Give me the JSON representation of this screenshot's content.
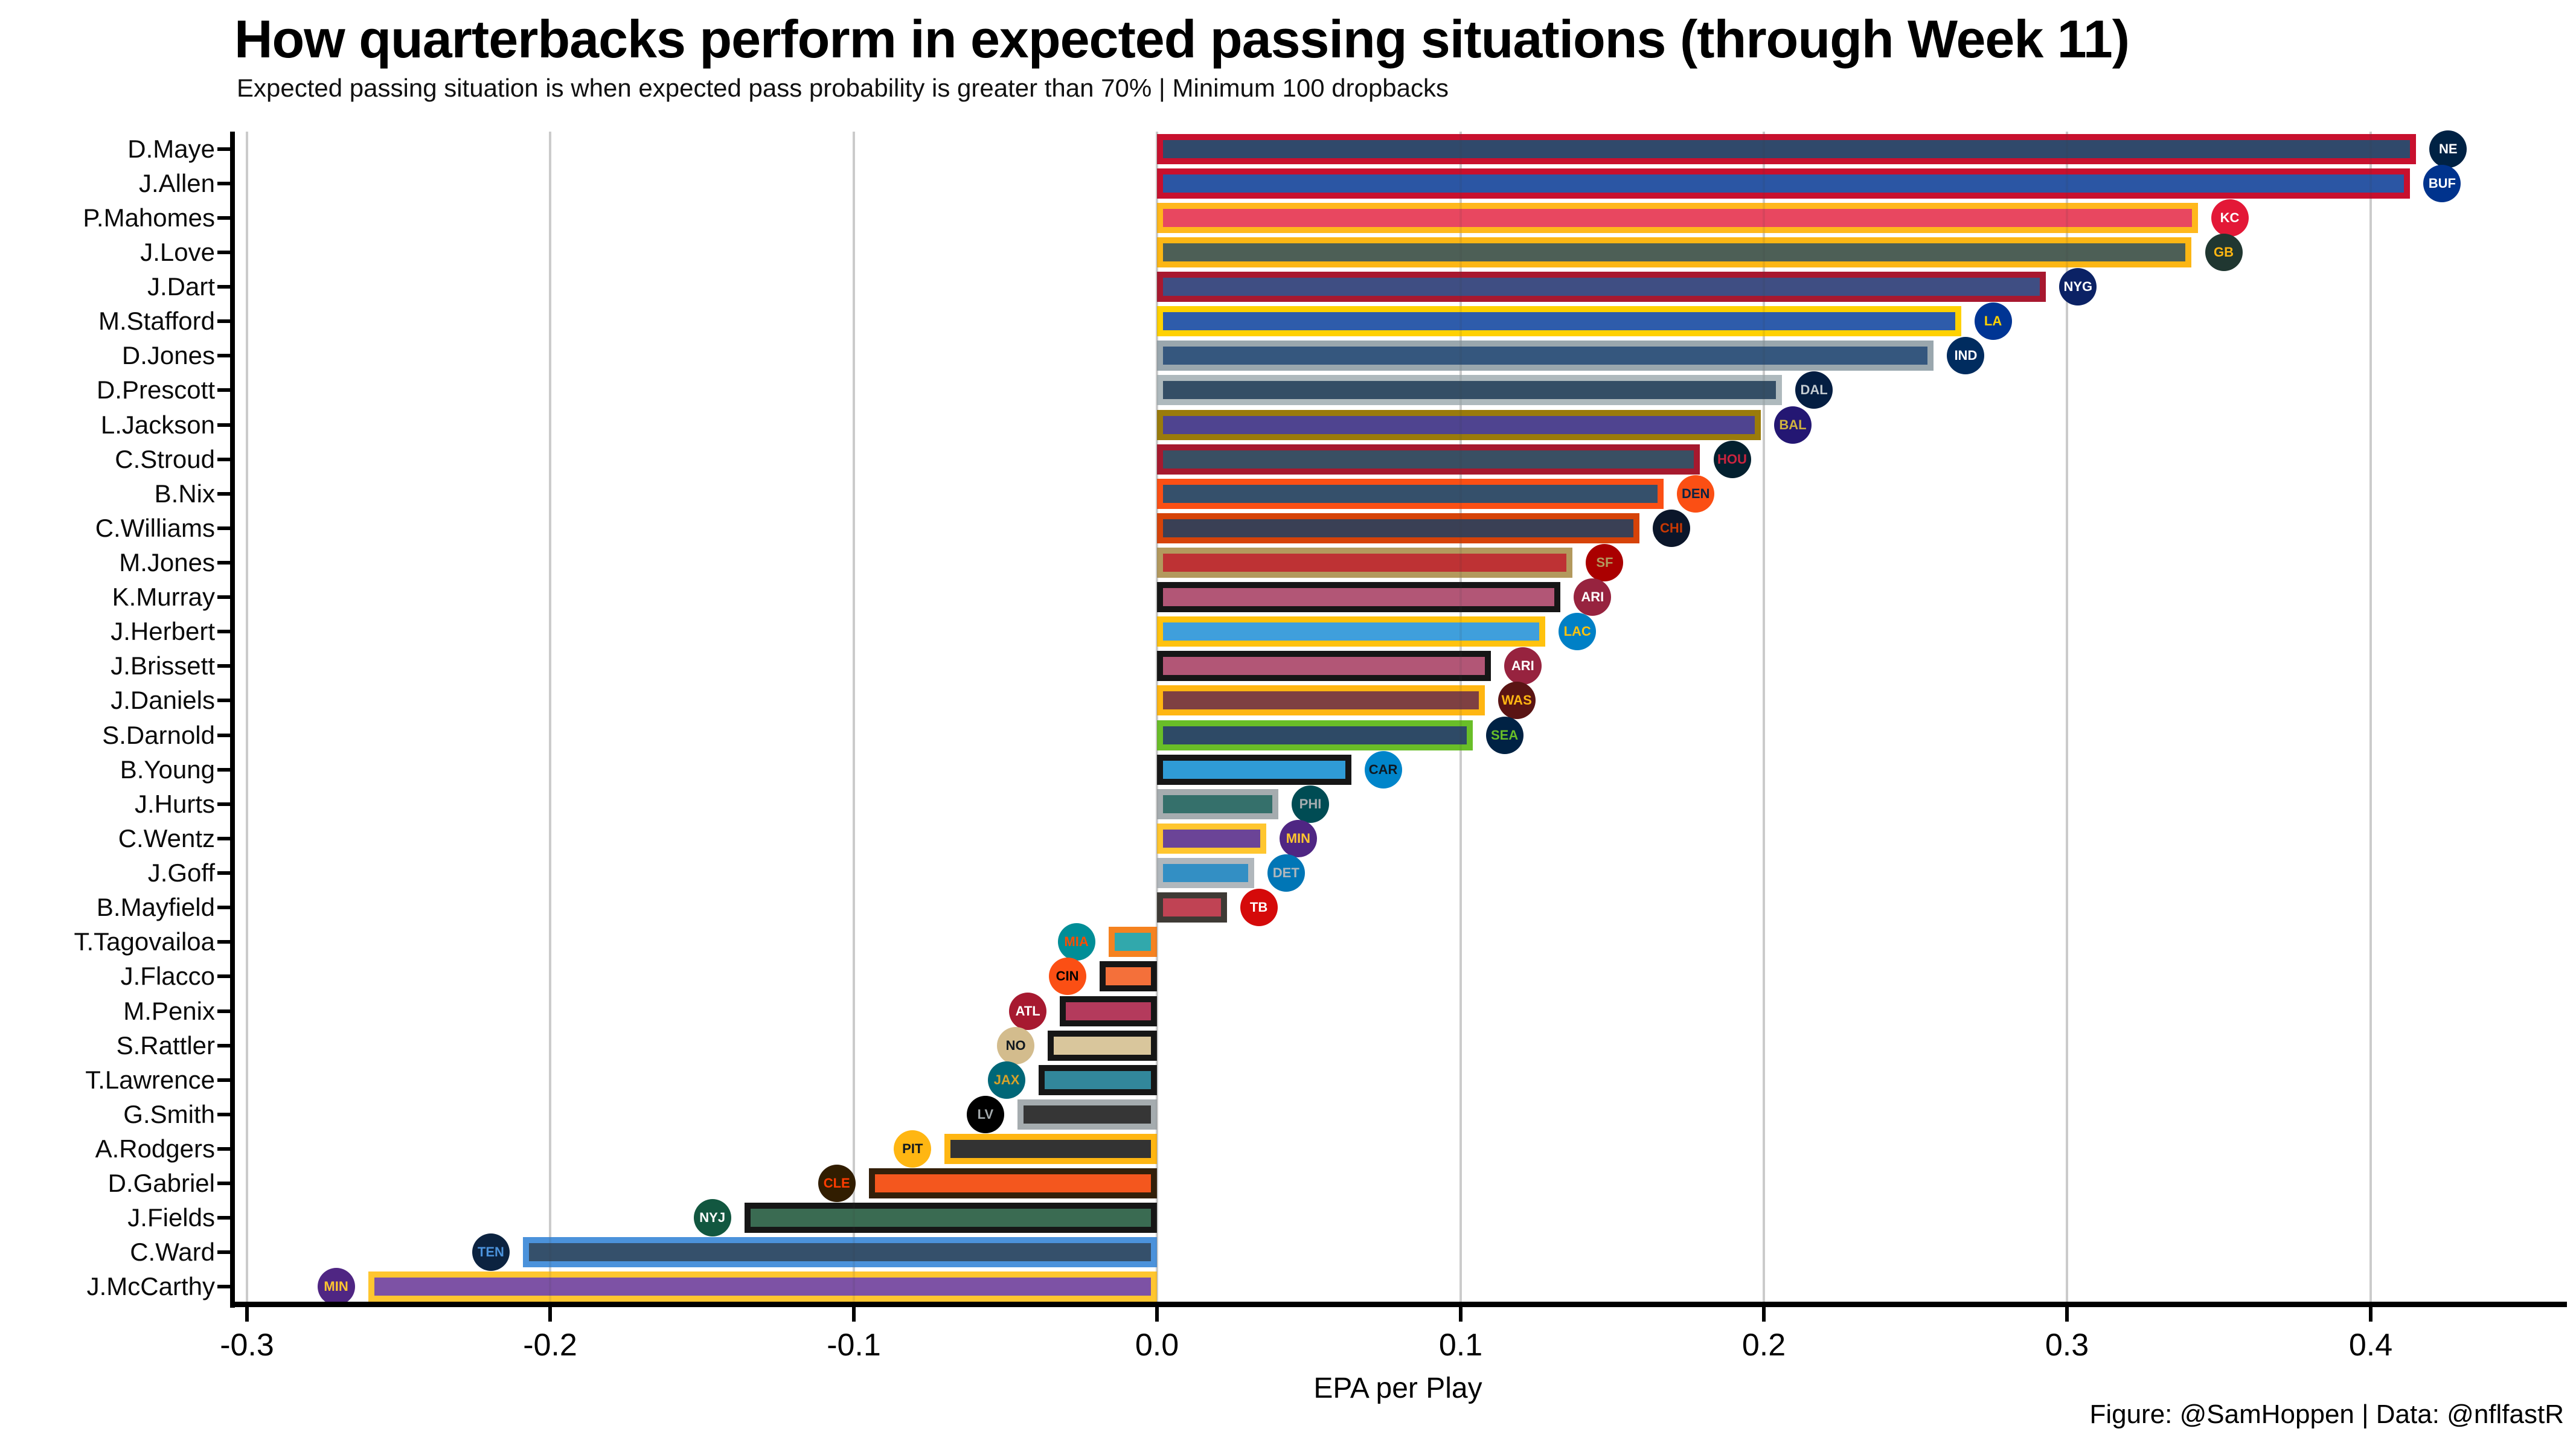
{
  "footer": "Figure: @SamHoppen | Data: @nflfastR",
  "chart_data": {
    "type": "bar",
    "orientation": "horizontal",
    "title": "How quarterbacks perform in expected passing situations (through Week 11)",
    "subtitle": "Expected passing situation is when expected pass probability is greater than 70% | Minimum 100 dropbacks",
    "xlabel": "EPA per Play",
    "xlim": [
      -0.3045,
      0.4631
    ],
    "xticks": [
      -0.3,
      -0.2,
      -0.1,
      0.0,
      0.1,
      0.2,
      0.3,
      0.4
    ],
    "grid": "vertical-gridlines",
    "legend": "none",
    "players": [
      {
        "label": "D.Maye",
        "team_abbr": "NE",
        "epa": 0.415,
        "fill": "#30496B",
        "outline": "#C8102E",
        "logo_bg": "#002244",
        "logo_fg": "#FFFFFF"
      },
      {
        "label": "J.Allen",
        "team_abbr": "BUF",
        "epa": 0.413,
        "fill": "#2B56A4",
        "outline": "#C8102E",
        "logo_bg": "#00338D",
        "logo_fg": "#FFFFFF"
      },
      {
        "label": "P.Mahomes",
        "team_abbr": "KC",
        "epa": 0.343,
        "fill": "#E84760",
        "outline": "#FFB81C",
        "logo_bg": "#E31837",
        "logo_fg": "#FFFFFF"
      },
      {
        "label": "J.Love",
        "team_abbr": "GB",
        "epa": 0.341,
        "fill": "#4D5F56",
        "outline": "#FCB614",
        "logo_bg": "#203731",
        "logo_fg": "#FFB612"
      },
      {
        "label": "J.Dart",
        "team_abbr": "NYG",
        "epa": 0.293,
        "fill": "#3F4E83",
        "outline": "#A8182F",
        "logo_bg": "#0B2265",
        "logo_fg": "#FFFFFF"
      },
      {
        "label": "M.Stafford",
        "team_abbr": "LA",
        "epa": 0.265,
        "fill": "#2E5CAB",
        "outline": "#FFD100",
        "logo_bg": "#003594",
        "logo_fg": "#FFD100"
      },
      {
        "label": "D.Jones",
        "team_abbr": "IND",
        "epa": 0.256,
        "fill": "#35577E",
        "outline": "#9AA7AE",
        "logo_bg": "#002C5F",
        "logo_fg": "#FFFFFF"
      },
      {
        "label": "D.Prescott",
        "team_abbr": "DAL",
        "epa": 0.206,
        "fill": "#344E66",
        "outline": "#AEB9BD",
        "logo_bg": "#041E42",
        "logo_fg": "#C3CBD0"
      },
      {
        "label": "L.Jackson",
        "team_abbr": "BAL",
        "epa": 0.199,
        "fill": "#4F4490",
        "outline": "#9A7B0B",
        "logo_bg": "#241773",
        "logo_fg": "#D0B240"
      },
      {
        "label": "C.Stroud",
        "team_abbr": "HOU",
        "epa": 0.179,
        "fill": "#394F63",
        "outline": "#A6192E",
        "logo_bg": "#03202F",
        "logo_fg": "#C9243F"
      },
      {
        "label": "B.Nix",
        "team_abbr": "DEN",
        "epa": 0.167,
        "fill": "#35506B",
        "outline": "#FB4F14",
        "logo_bg": "#FB4F14",
        "logo_fg": "#0A2343"
      },
      {
        "label": "C.Williams",
        "team_abbr": "CHI",
        "epa": 0.159,
        "fill": "#3A4055",
        "outline": "#D64309",
        "logo_bg": "#0B162A",
        "logo_fg": "#C83803"
      },
      {
        "label": "M.Jones",
        "team_abbr": "SF",
        "epa": 0.137,
        "fill": "#BE3234",
        "outline": "#B3995D",
        "logo_bg": "#AA0000",
        "logo_fg": "#B3995D"
      },
      {
        "label": "K.Murray",
        "team_abbr": "ARI",
        "epa": 0.133,
        "fill": "#B25676",
        "outline": "#161616",
        "logo_bg": "#97233F",
        "logo_fg": "#FFFFFF"
      },
      {
        "label": "J.Herbert",
        "team_abbr": "LAC",
        "epa": 0.128,
        "fill": "#3F9FDC",
        "outline": "#FFC20E",
        "logo_bg": "#0080C6",
        "logo_fg": "#FFC20E"
      },
      {
        "label": "J.Brissett",
        "team_abbr": "ARI",
        "epa": 0.11,
        "fill": "#B25676",
        "outline": "#161616",
        "logo_bg": "#97233F",
        "logo_fg": "#FFFFFF"
      },
      {
        "label": "J.Daniels",
        "team_abbr": "WAS",
        "epa": 0.108,
        "fill": "#7E4042",
        "outline": "#FFB612",
        "logo_bg": "#5A1414",
        "logo_fg": "#FFB612"
      },
      {
        "label": "S.Darnold",
        "team_abbr": "SEA",
        "epa": 0.104,
        "fill": "#2E4A66",
        "outline": "#69BE28",
        "logo_bg": "#002244",
        "logo_fg": "#69BE28"
      },
      {
        "label": "B.Young",
        "team_abbr": "CAR",
        "epa": 0.064,
        "fill": "#2F9BD6",
        "outline": "#161616",
        "logo_bg": "#0085CA",
        "logo_fg": "#101820"
      },
      {
        "label": "J.Hurts",
        "team_abbr": "PHI",
        "epa": 0.04,
        "fill": "#35706B",
        "outline": "#A5ACAF",
        "logo_bg": "#004C54",
        "logo_fg": "#A5ACAF"
      },
      {
        "label": "C.Wentz",
        "team_abbr": "MIN",
        "epa": 0.036,
        "fill": "#6B4497",
        "outline": "#FFC62F",
        "logo_bg": "#4F2683",
        "logo_fg": "#FFC62F"
      },
      {
        "label": "J.Goff",
        "team_abbr": "DET",
        "epa": 0.032,
        "fill": "#338FC4",
        "outline": "#B0B7BC",
        "logo_bg": "#0076B6",
        "logo_fg": "#B0B7BC"
      },
      {
        "label": "B.Mayfield",
        "team_abbr": "TB",
        "epa": 0.023,
        "fill": "#C04354",
        "outline": "#3E3A35",
        "logo_bg": "#D50A0A",
        "logo_fg": "#FFFFFF"
      },
      {
        "label": "T.Tagovailoa",
        "team_abbr": "MIA",
        "epa": -0.016,
        "fill": "#31A8AC",
        "outline": "#F58220",
        "logo_bg": "#008E97",
        "logo_fg": "#FC4C02"
      },
      {
        "label": "J.Flacco",
        "team_abbr": "CIN",
        "epa": -0.019,
        "fill": "#F4703A",
        "outline": "#161616",
        "logo_bg": "#FB4F14",
        "logo_fg": "#000000"
      },
      {
        "label": "M.Penix",
        "team_abbr": "ATL",
        "epa": -0.032,
        "fill": "#B43A5C",
        "outline": "#161616",
        "logo_bg": "#A71930",
        "logo_fg": "#FFFFFF"
      },
      {
        "label": "S.Rattler",
        "team_abbr": "NO",
        "epa": -0.036,
        "fill": "#D9C69C",
        "outline": "#161616",
        "logo_bg": "#D3BC8D",
        "logo_fg": "#101820"
      },
      {
        "label": "T.Lawrence",
        "team_abbr": "JAX",
        "epa": -0.039,
        "fill": "#32879B",
        "outline": "#161616",
        "logo_bg": "#006778",
        "logo_fg": "#D7A22A"
      },
      {
        "label": "G.Smith",
        "team_abbr": "LV",
        "epa": -0.046,
        "fill": "#363636",
        "outline": "#A5ACAF",
        "logo_bg": "#000000",
        "logo_fg": "#A5ACAF"
      },
      {
        "label": "A.Rodgers",
        "team_abbr": "PIT",
        "epa": -0.07,
        "fill": "#333333",
        "outline": "#FFB612",
        "logo_bg": "#FFB612",
        "logo_fg": "#101820"
      },
      {
        "label": "D.Gabriel",
        "team_abbr": "CLE",
        "epa": -0.095,
        "fill": "#F4571E",
        "outline": "#33200A",
        "logo_bg": "#311D00",
        "logo_fg": "#FF3C00"
      },
      {
        "label": "J.Fields",
        "team_abbr": "NYJ",
        "epa": -0.136,
        "fill": "#3A6B52",
        "outline": "#161616",
        "logo_bg": "#125740",
        "logo_fg": "#FFFFFF"
      },
      {
        "label": "C.Ward",
        "team_abbr": "TEN",
        "epa": -0.209,
        "fill": "#35506B",
        "outline": "#4B92DB",
        "logo_bg": "#0C2340",
        "logo_fg": "#4B92DB"
      },
      {
        "label": "J.McCarthy",
        "team_abbr": "MIN",
        "epa": -0.26,
        "fill": "#7D52A5",
        "outline": "#FFC62F",
        "logo_bg": "#4F2683",
        "logo_fg": "#FFC62F"
      }
    ]
  }
}
